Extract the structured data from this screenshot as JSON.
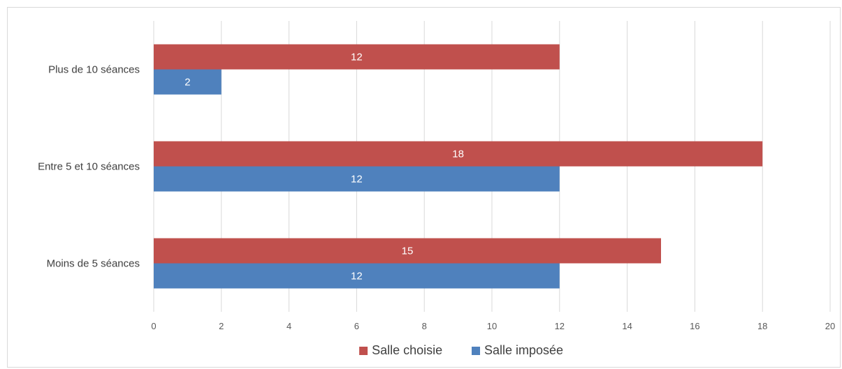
{
  "chart_data": {
    "type": "bar",
    "orientation": "horizontal",
    "categories": [
      "Plus de 10 séances",
      "Entre 5 et 10 séances",
      "Moins de 5 séances"
    ],
    "series": [
      {
        "name": "Salle choisie",
        "color": "#c0504d",
        "values": [
          12,
          18,
          15
        ]
      },
      {
        "name": "Salle imposée",
        "color": "#4f81bd",
        "values": [
          2,
          12,
          12
        ]
      }
    ],
    "xlim": [
      0,
      20
    ],
    "xticks": [
      0,
      2,
      4,
      6,
      8,
      10,
      12,
      14,
      16,
      18,
      20
    ],
    "grid": true,
    "data_labels": true,
    "legend_position": "bottom"
  },
  "colors": {
    "grid": "#d9d9d9",
    "axis_text": "#595959",
    "bar_label": "#ffffff"
  }
}
